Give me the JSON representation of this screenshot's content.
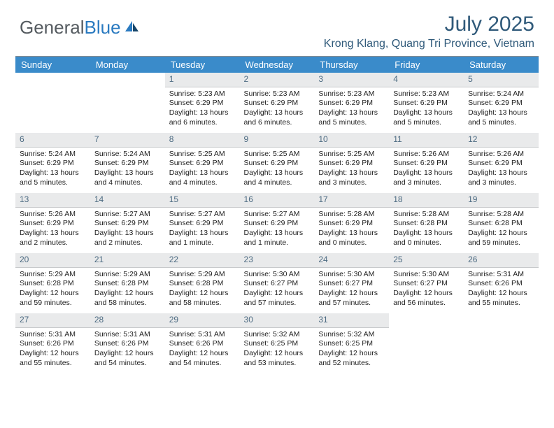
{
  "brand": {
    "part1": "General",
    "part2": "Blue"
  },
  "title": "July 2025",
  "location": "Krong Klang, Quang Tri Province, Vietnam",
  "colors": {
    "header_bg": "#3a8bca",
    "header_fg": "#ffffff",
    "date_bg": "#e9eaeb",
    "date_fg": "#4d6b82",
    "title_fg": "#305a7a",
    "logo_gray": "#555b60",
    "logo_blue": "#2a7ac0",
    "rule": "#8a8d8f"
  },
  "weekdays": [
    "Sunday",
    "Monday",
    "Tuesday",
    "Wednesday",
    "Thursday",
    "Friday",
    "Saturday"
  ],
  "grid": [
    [
      null,
      null,
      {
        "d": "1",
        "sr": "Sunrise: 5:23 AM",
        "ss": "Sunset: 6:29 PM",
        "dl": "Daylight: 13 hours and 6 minutes."
      },
      {
        "d": "2",
        "sr": "Sunrise: 5:23 AM",
        "ss": "Sunset: 6:29 PM",
        "dl": "Daylight: 13 hours and 6 minutes."
      },
      {
        "d": "3",
        "sr": "Sunrise: 5:23 AM",
        "ss": "Sunset: 6:29 PM",
        "dl": "Daylight: 13 hours and 5 minutes."
      },
      {
        "d": "4",
        "sr": "Sunrise: 5:23 AM",
        "ss": "Sunset: 6:29 PM",
        "dl": "Daylight: 13 hours and 5 minutes."
      },
      {
        "d": "5",
        "sr": "Sunrise: 5:24 AM",
        "ss": "Sunset: 6:29 PM",
        "dl": "Daylight: 13 hours and 5 minutes."
      }
    ],
    [
      {
        "d": "6",
        "sr": "Sunrise: 5:24 AM",
        "ss": "Sunset: 6:29 PM",
        "dl": "Daylight: 13 hours and 5 minutes."
      },
      {
        "d": "7",
        "sr": "Sunrise: 5:24 AM",
        "ss": "Sunset: 6:29 PM",
        "dl": "Daylight: 13 hours and 4 minutes."
      },
      {
        "d": "8",
        "sr": "Sunrise: 5:25 AM",
        "ss": "Sunset: 6:29 PM",
        "dl": "Daylight: 13 hours and 4 minutes."
      },
      {
        "d": "9",
        "sr": "Sunrise: 5:25 AM",
        "ss": "Sunset: 6:29 PM",
        "dl": "Daylight: 13 hours and 4 minutes."
      },
      {
        "d": "10",
        "sr": "Sunrise: 5:25 AM",
        "ss": "Sunset: 6:29 PM",
        "dl": "Daylight: 13 hours and 3 minutes."
      },
      {
        "d": "11",
        "sr": "Sunrise: 5:26 AM",
        "ss": "Sunset: 6:29 PM",
        "dl": "Daylight: 13 hours and 3 minutes."
      },
      {
        "d": "12",
        "sr": "Sunrise: 5:26 AM",
        "ss": "Sunset: 6:29 PM",
        "dl": "Daylight: 13 hours and 3 minutes."
      }
    ],
    [
      {
        "d": "13",
        "sr": "Sunrise: 5:26 AM",
        "ss": "Sunset: 6:29 PM",
        "dl": "Daylight: 13 hours and 2 minutes."
      },
      {
        "d": "14",
        "sr": "Sunrise: 5:27 AM",
        "ss": "Sunset: 6:29 PM",
        "dl": "Daylight: 13 hours and 2 minutes."
      },
      {
        "d": "15",
        "sr": "Sunrise: 5:27 AM",
        "ss": "Sunset: 6:29 PM",
        "dl": "Daylight: 13 hours and 1 minute."
      },
      {
        "d": "16",
        "sr": "Sunrise: 5:27 AM",
        "ss": "Sunset: 6:29 PM",
        "dl": "Daylight: 13 hours and 1 minute."
      },
      {
        "d": "17",
        "sr": "Sunrise: 5:28 AM",
        "ss": "Sunset: 6:29 PM",
        "dl": "Daylight: 13 hours and 0 minutes."
      },
      {
        "d": "18",
        "sr": "Sunrise: 5:28 AM",
        "ss": "Sunset: 6:28 PM",
        "dl": "Daylight: 13 hours and 0 minutes."
      },
      {
        "d": "19",
        "sr": "Sunrise: 5:28 AM",
        "ss": "Sunset: 6:28 PM",
        "dl": "Daylight: 12 hours and 59 minutes."
      }
    ],
    [
      {
        "d": "20",
        "sr": "Sunrise: 5:29 AM",
        "ss": "Sunset: 6:28 PM",
        "dl": "Daylight: 12 hours and 59 minutes."
      },
      {
        "d": "21",
        "sr": "Sunrise: 5:29 AM",
        "ss": "Sunset: 6:28 PM",
        "dl": "Daylight: 12 hours and 58 minutes."
      },
      {
        "d": "22",
        "sr": "Sunrise: 5:29 AM",
        "ss": "Sunset: 6:28 PM",
        "dl": "Daylight: 12 hours and 58 minutes."
      },
      {
        "d": "23",
        "sr": "Sunrise: 5:30 AM",
        "ss": "Sunset: 6:27 PM",
        "dl": "Daylight: 12 hours and 57 minutes."
      },
      {
        "d": "24",
        "sr": "Sunrise: 5:30 AM",
        "ss": "Sunset: 6:27 PM",
        "dl": "Daylight: 12 hours and 57 minutes."
      },
      {
        "d": "25",
        "sr": "Sunrise: 5:30 AM",
        "ss": "Sunset: 6:27 PM",
        "dl": "Daylight: 12 hours and 56 minutes."
      },
      {
        "d": "26",
        "sr": "Sunrise: 5:31 AM",
        "ss": "Sunset: 6:26 PM",
        "dl": "Daylight: 12 hours and 55 minutes."
      }
    ],
    [
      {
        "d": "27",
        "sr": "Sunrise: 5:31 AM",
        "ss": "Sunset: 6:26 PM",
        "dl": "Daylight: 12 hours and 55 minutes."
      },
      {
        "d": "28",
        "sr": "Sunrise: 5:31 AM",
        "ss": "Sunset: 6:26 PM",
        "dl": "Daylight: 12 hours and 54 minutes."
      },
      {
        "d": "29",
        "sr": "Sunrise: 5:31 AM",
        "ss": "Sunset: 6:26 PM",
        "dl": "Daylight: 12 hours and 54 minutes."
      },
      {
        "d": "30",
        "sr": "Sunrise: 5:32 AM",
        "ss": "Sunset: 6:25 PM",
        "dl": "Daylight: 12 hours and 53 minutes."
      },
      {
        "d": "31",
        "sr": "Sunrise: 5:32 AM",
        "ss": "Sunset: 6:25 PM",
        "dl": "Daylight: 12 hours and 52 minutes."
      },
      null,
      null
    ]
  ]
}
